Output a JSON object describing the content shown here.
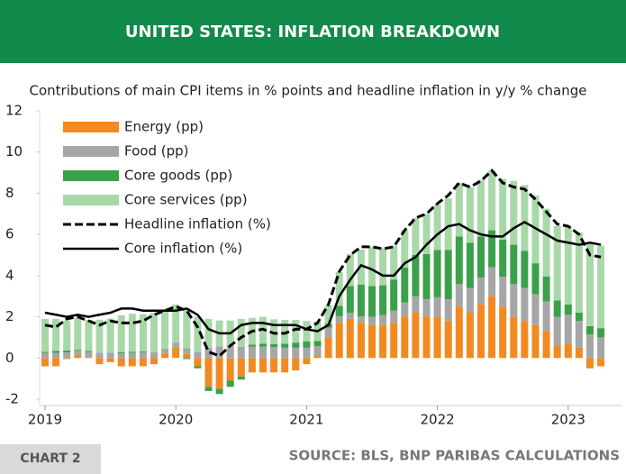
{
  "chart_data": {
    "type": "bar",
    "stacked": true,
    "title": "UNITED STATES: INFLATION BREAKDOWN",
    "subtitle": "Contributions of main CPI items in % points and headline inflation in y/y % change",
    "categories": [
      "2019",
      null,
      null,
      null,
      null,
      null,
      null,
      null,
      null,
      null,
      null,
      null,
      "2020",
      null,
      null,
      null,
      null,
      null,
      null,
      null,
      null,
      null,
      null,
      null,
      "2021",
      null,
      null,
      null,
      null,
      null,
      null,
      null,
      null,
      null,
      null,
      null,
      "2022",
      null,
      null,
      null,
      null,
      null,
      null,
      null,
      null,
      null,
      null,
      null,
      "2023",
      null,
      null,
      null
    ],
    "ylim": [
      -2,
      12
    ],
    "yticks": [
      -2,
      0,
      2,
      4,
      6,
      8,
      10,
      12
    ],
    "grid": false,
    "legend": "top-left",
    "series": [
      {
        "name": "Energy (pp)",
        "type": "bar",
        "color": "#f18a21",
        "values": [
          -0.4,
          -0.4,
          -0.05,
          0.1,
          0.05,
          -0.3,
          -0.2,
          -0.4,
          -0.4,
          -0.4,
          -0.3,
          0.2,
          0.5,
          0.2,
          -0.4,
          -1.4,
          -1.5,
          -1.1,
          -0.9,
          -0.7,
          -0.7,
          -0.7,
          -0.7,
          -0.6,
          -0.3,
          0.1,
          1.0,
          1.7,
          1.9,
          1.7,
          1.6,
          1.6,
          1.7,
          2.0,
          2.2,
          2.0,
          2.0,
          1.8,
          2.5,
          2.2,
          2.6,
          3.0,
          2.5,
          2.0,
          1.8,
          1.6,
          1.3,
          0.6,
          0.7,
          0.5,
          -0.5,
          -0.4
        ]
      },
      {
        "name": "Food (pp)",
        "type": "bar",
        "color": "#a6a6a6",
        "values": [
          0.25,
          0.25,
          0.27,
          0.25,
          0.25,
          0.26,
          0.26,
          0.23,
          0.25,
          0.28,
          0.28,
          0.25,
          0.25,
          0.27,
          0.3,
          0.5,
          0.57,
          0.62,
          0.55,
          0.55,
          0.55,
          0.53,
          0.5,
          0.5,
          0.5,
          0.48,
          0.47,
          0.33,
          0.3,
          0.32,
          0.4,
          0.48,
          0.61,
          0.7,
          0.8,
          0.85,
          0.95,
          1.05,
          1.1,
          1.2,
          1.3,
          1.4,
          1.45,
          1.6,
          1.6,
          1.5,
          1.45,
          1.4,
          1.4,
          1.3,
          1.15,
          1.0
        ]
      },
      {
        "name": "Core goods (pp)",
        "type": "bar",
        "color": "#3aa14a",
        "values": [
          0.05,
          0.1,
          0.1,
          0.05,
          0.05,
          0,
          0,
          0.05,
          0.05,
          0.05,
          0,
          0,
          0,
          -0.05,
          -0.1,
          -0.2,
          -0.25,
          -0.3,
          -0.15,
          0.1,
          0.15,
          0.15,
          0.2,
          0.25,
          0.3,
          0.25,
          0.2,
          0.5,
          1.3,
          1.55,
          1.5,
          1.45,
          1.5,
          1.7,
          2.0,
          2.2,
          2.3,
          2.4,
          2.3,
          2.2,
          2.0,
          1.8,
          1.8,
          1.9,
          1.8,
          1.5,
          1.2,
          0.8,
          0.5,
          0.4,
          0.4,
          0.45
        ]
      },
      {
        "name": "Core services (pp)",
        "type": "bar",
        "color": "#a8d8a8",
        "values": [
          1.6,
          1.55,
          1.45,
          1.55,
          1.5,
          1.6,
          1.65,
          1.8,
          1.85,
          1.8,
          1.9,
          1.85,
          1.85,
          1.85,
          1.7,
          1.4,
          1.25,
          1.2,
          1.35,
          1.3,
          1.3,
          1.2,
          1.15,
          1.1,
          1.0,
          0.95,
          0.9,
          1.65,
          1.55,
          1.7,
          1.9,
          1.8,
          1.65,
          1.8,
          1.8,
          1.95,
          2.2,
          2.5,
          2.6,
          2.7,
          2.75,
          2.9,
          2.95,
          3.1,
          3.2,
          3.3,
          3.3,
          3.6,
          3.8,
          3.9,
          4.0,
          4.0
        ]
      },
      {
        "name": "Headline inflation (%)",
        "type": "line",
        "dashed": true,
        "color": "#000000",
        "values": [
          1.6,
          1.5,
          1.9,
          2.0,
          1.8,
          1.6,
          1.8,
          1.7,
          1.7,
          1.8,
          2.1,
          2.3,
          2.5,
          2.3,
          1.5,
          0.3,
          0.1,
          0.6,
          1.0,
          1.3,
          1.4,
          1.2,
          1.2,
          1.4,
          1.4,
          1.7,
          2.6,
          4.2,
          5.0,
          5.4,
          5.4,
          5.3,
          5.4,
          6.2,
          6.8,
          7.0,
          7.5,
          7.9,
          8.5,
          8.3,
          8.6,
          9.1,
          8.5,
          8.3,
          8.2,
          7.7,
          7.1,
          6.5,
          6.4,
          6.0,
          5.0,
          4.9
        ]
      },
      {
        "name": "Core inflation (%)",
        "type": "line",
        "dashed": false,
        "color": "#000000",
        "values": [
          2.2,
          2.1,
          2.0,
          2.1,
          2.0,
          2.1,
          2.2,
          2.4,
          2.4,
          2.3,
          2.3,
          2.3,
          2.3,
          2.4,
          2.1,
          1.4,
          1.2,
          1.2,
          1.6,
          1.7,
          1.7,
          1.6,
          1.6,
          1.6,
          1.4,
          1.3,
          1.6,
          3.0,
          3.8,
          4.5,
          4.3,
          4.0,
          4.0,
          4.6,
          4.9,
          5.5,
          6.0,
          6.4,
          6.5,
          6.2,
          6.0,
          5.9,
          5.9,
          6.3,
          6.6,
          6.3,
          6.0,
          5.7,
          5.6,
          5.5,
          5.6,
          5.5
        ]
      }
    ]
  },
  "footer": {
    "label": "CHART 2",
    "source": "SOURCE: BLS, BNP PARIBAS CALCULATIONS"
  }
}
